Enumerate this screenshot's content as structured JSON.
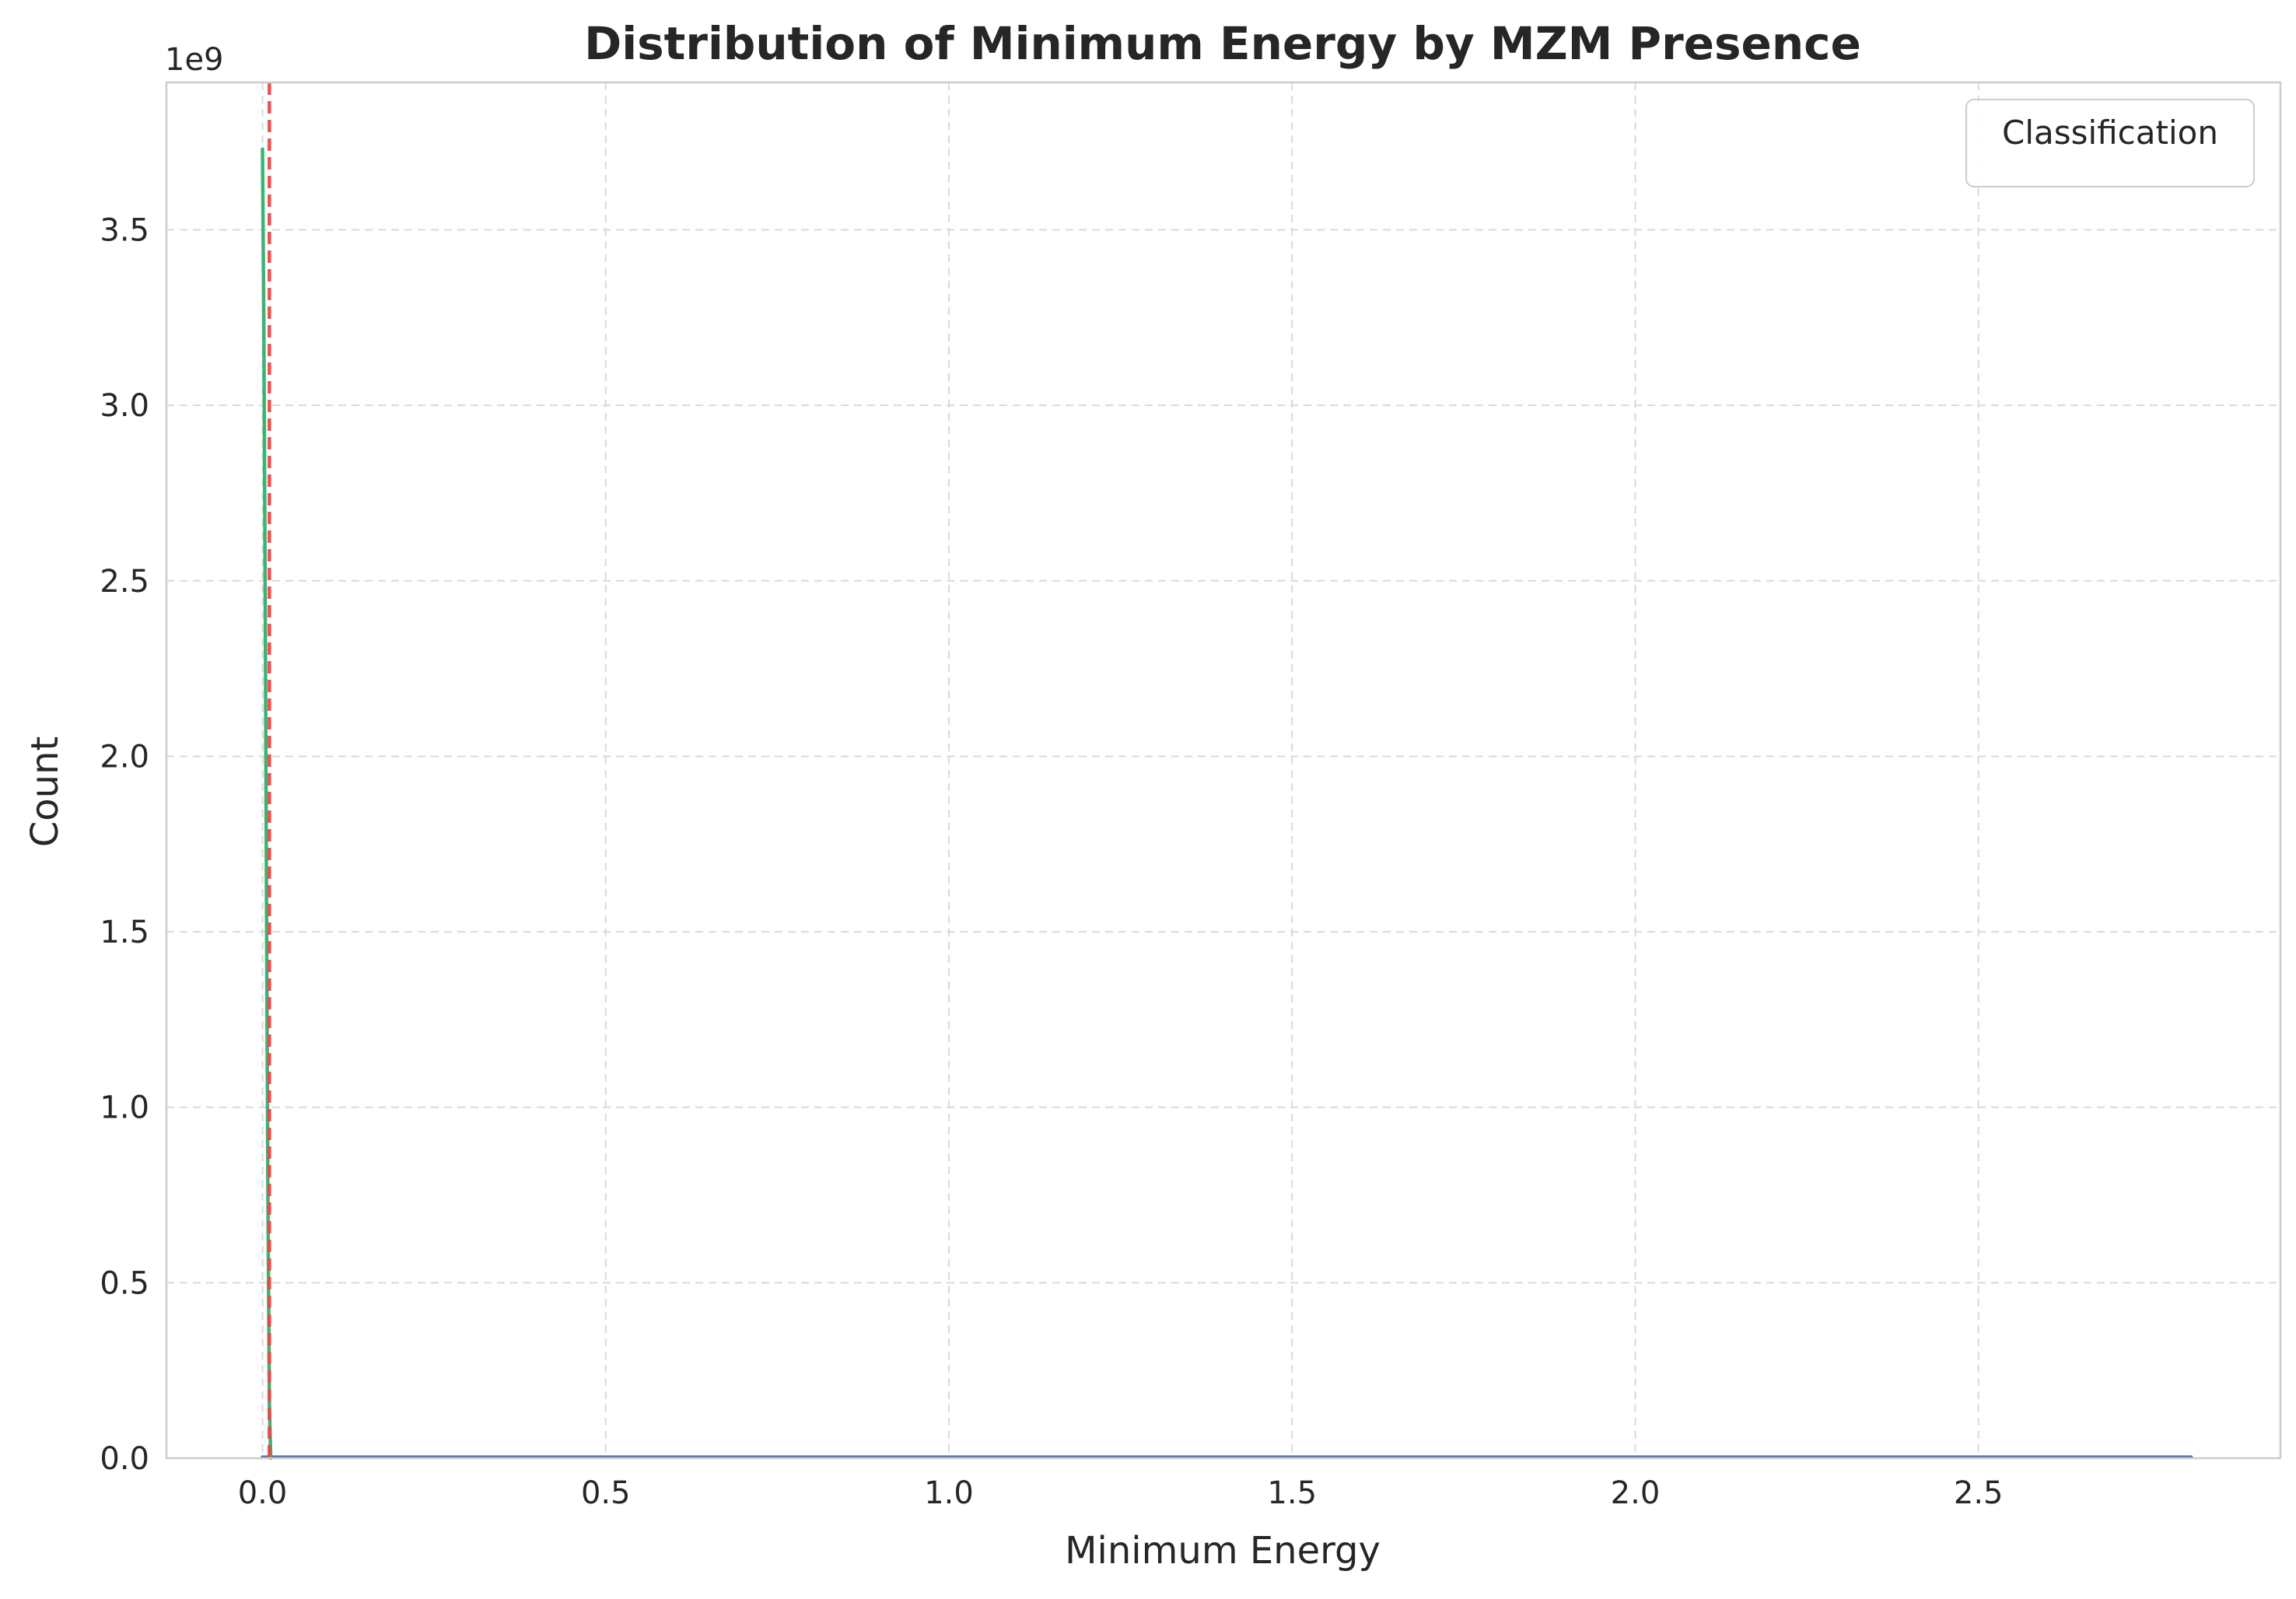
{
  "chart_data": {
    "type": "line",
    "title": "Distribution of Minimum Energy by MZM Presence",
    "xlabel": "Minimum Energy",
    "ylabel": "Count",
    "y_offset_label": "1e9",
    "xlim": [
      -0.14,
      2.94
    ],
    "ylim": [
      0,
      3.92
    ],
    "x_ticks": [
      0.0,
      0.5,
      1.0,
      1.5,
      2.0,
      2.5
    ],
    "x_tick_labels": [
      "0.0",
      "0.5",
      "1.0",
      "1.5",
      "2.0",
      "2.5"
    ],
    "y_ticks": [
      0.0,
      0.5,
      1.0,
      1.5,
      2.0,
      2.5,
      3.0,
      3.5
    ],
    "y_tick_labels": [
      "0.0",
      "0.5",
      "1.0",
      "1.5",
      "2.0",
      "2.5",
      "3.0",
      "3.5"
    ],
    "grid": true,
    "legend": {
      "title": "Classification",
      "placement": "top-right",
      "entries": []
    },
    "series": [
      {
        "color": "#3cb371",
        "x": [
          0.0,
          0.002,
          0.004,
          0.006,
          0.008,
          0.01,
          0.012
        ],
        "y": [
          3.73,
          3.2,
          2.4,
          1.5,
          0.7,
          0.15,
          0.0
        ]
      },
      {
        "color": "#4c72b0",
        "x": [
          0.0,
          0.5,
          1.0,
          1.5,
          2.0,
          2.5,
          2.81
        ],
        "y": [
          0.003,
          0.003,
          0.003,
          0.003,
          0.003,
          0.003,
          0.003
        ]
      }
    ],
    "reference_lines": [
      {
        "orientation": "vertical",
        "x": 0.01,
        "color": "#f04444",
        "style": "dashed"
      }
    ]
  }
}
